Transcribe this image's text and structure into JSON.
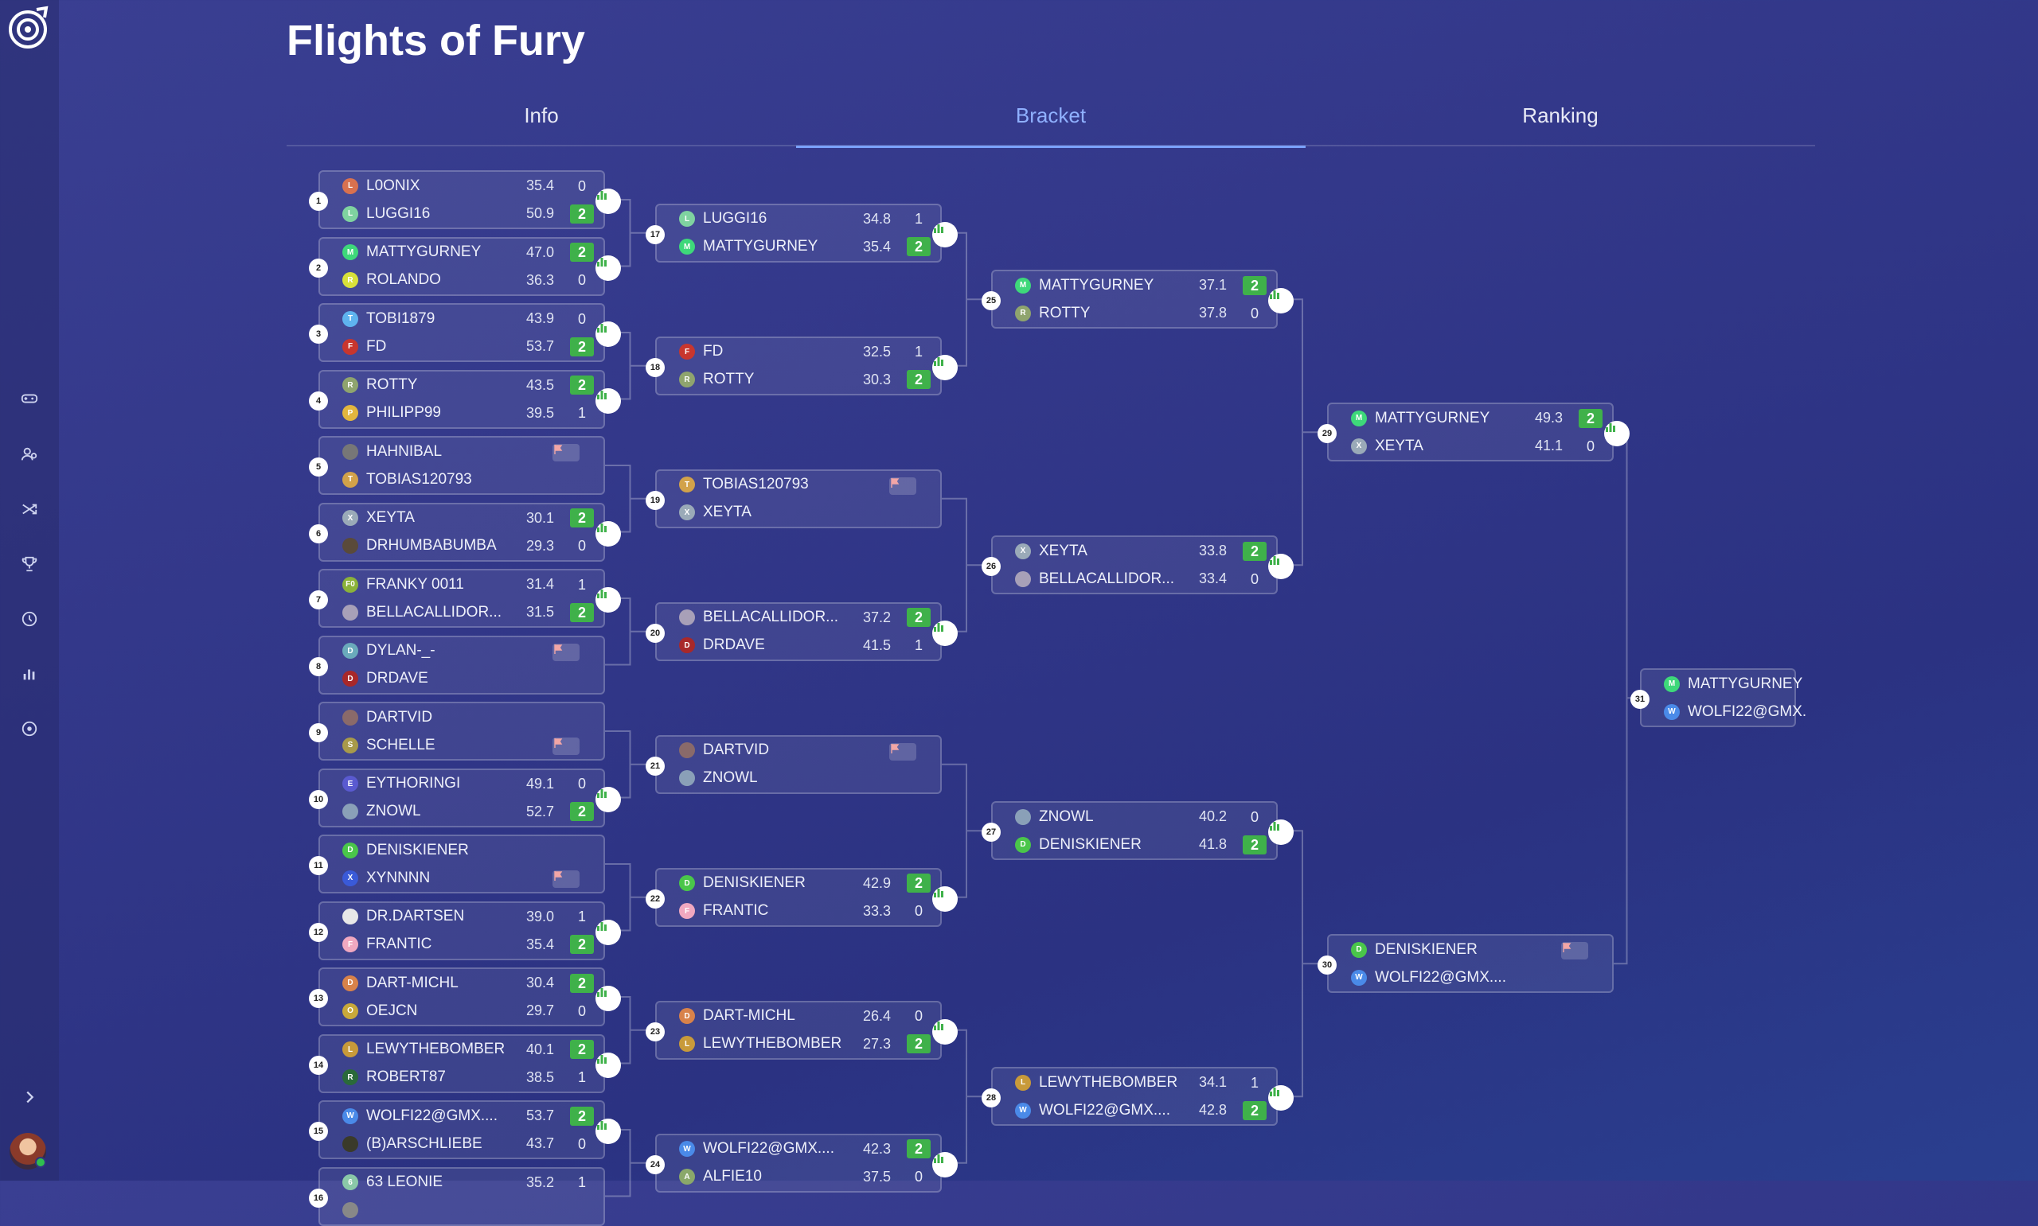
{
  "app": {
    "title": "Flights of Fury"
  },
  "tabs": [
    {
      "label": "Info"
    },
    {
      "label": "Bracket",
      "active": true
    },
    {
      "label": "Ranking"
    }
  ],
  "sidebar": {
    "items": [
      "gamepad-icon",
      "players-icon",
      "shuffle-icon",
      "trophy-icon",
      "history-icon",
      "stats-icon",
      "target-icon"
    ],
    "expand": "chevron-right-icon"
  },
  "colors": {
    "win": "#3fb14a",
    "accent": "#7aa2ff",
    "stat_icon": "#3fb14a"
  },
  "rounds": [
    [
      {
        "num": "1",
        "stat": true,
        "players": [
          {
            "name": "L0ONIX",
            "avg": "35.4",
            "score": "0",
            "init": "L",
            "color": "#d9714f"
          },
          {
            "name": "LUGGI16",
            "avg": "50.9",
            "score": "2",
            "win": true,
            "init": "L",
            "color": "#7fd3a0"
          }
        ]
      },
      {
        "num": "2",
        "stat": true,
        "players": [
          {
            "name": "MATTYGURNEY",
            "avg": "47.0",
            "score": "2",
            "win": true,
            "init": "M",
            "color": "#3ed87a"
          },
          {
            "name": "ROLANDO",
            "avg": "36.3",
            "score": "0",
            "init": "R",
            "color": "#d8e03a"
          }
        ]
      },
      {
        "num": "3",
        "stat": true,
        "players": [
          {
            "name": "TOBI1879",
            "avg": "43.9",
            "score": "0",
            "init": "T",
            "color": "#5fb3ef"
          },
          {
            "name": "FD",
            "avg": "53.7",
            "score": "2",
            "win": true,
            "init": "F",
            "color": "#c8362e"
          }
        ]
      },
      {
        "num": "4",
        "stat": true,
        "players": [
          {
            "name": "ROTTY",
            "avg": "43.5",
            "score": "2",
            "win": true,
            "init": "R",
            "color": "#8fa46e"
          },
          {
            "name": "PHILIPP99",
            "avg": "39.5",
            "score": "1",
            "init": "P",
            "color": "#e3b63e"
          }
        ]
      },
      {
        "num": "5",
        "flag": true,
        "players": [
          {
            "name": "HAHNIBAL",
            "init": "",
            "color": "#777777"
          },
          {
            "name": "TOBIAS120793",
            "init": "T",
            "color": "#d2a24a"
          }
        ]
      },
      {
        "num": "6",
        "stat": true,
        "players": [
          {
            "name": "XEYTA",
            "avg": "30.1",
            "score": "2",
            "win": true,
            "init": "X",
            "color": "#9aaab8"
          },
          {
            "name": "DRHUMBABUMBA",
            "avg": "29.3",
            "score": "0",
            "init": "",
            "color": "#5a4a3a"
          }
        ]
      },
      {
        "num": "7",
        "stat": true,
        "players": [
          {
            "name": "FRANKY 0011",
            "avg": "31.4",
            "score": "1",
            "init": "F0",
            "color": "#8bb23a"
          },
          {
            "name": "BELLACALLIDOR...",
            "avg": "31.5",
            "score": "2",
            "win": true,
            "init": "",
            "color": "#a8a0b8"
          }
        ]
      },
      {
        "num": "8",
        "flag": true,
        "players": [
          {
            "name": "DYLAN-_-",
            "init": "D",
            "color": "#6aaabb"
          },
          {
            "name": "DRDAVE",
            "init": "D",
            "color": "#a8282a"
          }
        ]
      },
      {
        "num": "9",
        "flag": true,
        "flagRow": 1,
        "players": [
          {
            "name": "DARTVID",
            "init": "",
            "color": "#8a6a6a"
          },
          {
            "name": "SCHELLE",
            "init": "S",
            "color": "#a89a4a"
          }
        ]
      },
      {
        "num": "10",
        "stat": true,
        "players": [
          {
            "name": "EYTHORINGI",
            "avg": "49.1",
            "score": "0",
            "init": "E",
            "color": "#5a5ad0"
          },
          {
            "name": "ZNOWL",
            "avg": "52.7",
            "score": "2",
            "win": true,
            "init": "",
            "color": "#8aa0b8"
          }
        ]
      },
      {
        "num": "11",
        "flag": true,
        "flagRow": 1,
        "players": [
          {
            "name": "DENISKIENER",
            "init": "D",
            "color": "#4ac64a"
          },
          {
            "name": "XYNNNN",
            "init": "X",
            "color": "#3a5ad8"
          }
        ]
      },
      {
        "num": "12",
        "stat": true,
        "players": [
          {
            "name": "DR.DARTSEN",
            "avg": "39.0",
            "score": "1",
            "init": "",
            "color": "#e8e8e8"
          },
          {
            "name": "FRANTIC",
            "avg": "35.4",
            "score": "2",
            "win": true,
            "init": "F",
            "color": "#f0a8c0"
          }
        ]
      },
      {
        "num": "13",
        "stat": true,
        "players": [
          {
            "name": "DART-MICHL",
            "avg": "30.4",
            "score": "2",
            "win": true,
            "init": "D",
            "color": "#d8824a"
          },
          {
            "name": "OEJCN",
            "avg": "29.7",
            "score": "0",
            "init": "O",
            "color": "#c8a83a"
          }
        ]
      },
      {
        "num": "14",
        "stat": true,
        "players": [
          {
            "name": "LEWYTHEBOMBER",
            "avg": "40.1",
            "score": "2",
            "win": true,
            "init": "L",
            "color": "#c89a3a"
          },
          {
            "name": "ROBERT87",
            "avg": "38.5",
            "score": "1",
            "init": "R",
            "color": "#2a6a3a"
          }
        ]
      },
      {
        "num": "15",
        "stat": true,
        "players": [
          {
            "name": "WOLFI22@GMX....",
            "avg": "53.7",
            "score": "2",
            "win": true,
            "init": "W",
            "color": "#4a8ae8"
          },
          {
            "name": "(B)ARSCHLIEBE",
            "avg": "43.7",
            "score": "0",
            "init": "",
            "color": "#3a3a2a"
          }
        ]
      },
      {
        "num": "16",
        "stat": false,
        "players": [
          {
            "name": "63 LEONIE",
            "avg": "35.2",
            "score": "1",
            "init": "6",
            "color": "#8ac8a8"
          },
          {
            "name": "",
            "avg": "",
            "score": "",
            "init": "",
            "color": "#888888"
          }
        ]
      }
    ],
    [
      {
        "num": "17",
        "stat": true,
        "players": [
          {
            "name": "LUGGI16",
            "avg": "34.8",
            "score": "1",
            "init": "L",
            "color": "#7fd3a0"
          },
          {
            "name": "MATTYGURNEY",
            "avg": "35.4",
            "score": "2",
            "win": true,
            "init": "M",
            "color": "#3ed87a"
          }
        ]
      },
      {
        "num": "18",
        "stat": true,
        "players": [
          {
            "name": "FD",
            "avg": "32.5",
            "score": "1",
            "init": "F",
            "color": "#c8362e"
          },
          {
            "name": "ROTTY",
            "avg": "30.3",
            "score": "2",
            "win": true,
            "init": "R",
            "color": "#8fa46e"
          }
        ]
      },
      {
        "num": "19",
        "flag": true,
        "players": [
          {
            "name": "TOBIAS120793",
            "init": "T",
            "color": "#d2a24a"
          },
          {
            "name": "XEYTA",
            "init": "X",
            "color": "#9aaab8"
          }
        ]
      },
      {
        "num": "20",
        "stat": true,
        "players": [
          {
            "name": "BELLACALLIDOR...",
            "avg": "37.2",
            "score": "2",
            "win": true,
            "init": "",
            "color": "#a8a0b8"
          },
          {
            "name": "DRDAVE",
            "avg": "41.5",
            "score": "1",
            "init": "D",
            "color": "#a8282a"
          }
        ]
      },
      {
        "num": "21",
        "flag": true,
        "players": [
          {
            "name": "DARTVID",
            "init": "",
            "color": "#8a6a6a"
          },
          {
            "name": "ZNOWL",
            "init": "",
            "color": "#8aa0b8"
          }
        ]
      },
      {
        "num": "22",
        "stat": true,
        "players": [
          {
            "name": "DENISKIENER",
            "avg": "42.9",
            "score": "2",
            "win": true,
            "init": "D",
            "color": "#4ac64a"
          },
          {
            "name": "FRANTIC",
            "avg": "33.3",
            "score": "0",
            "init": "F",
            "color": "#f0a8c0"
          }
        ]
      },
      {
        "num": "23",
        "stat": true,
        "players": [
          {
            "name": "DART-MICHL",
            "avg": "26.4",
            "score": "0",
            "init": "D",
            "color": "#d8824a"
          },
          {
            "name": "LEWYTHEBOMBER",
            "avg": "27.3",
            "score": "2",
            "win": true,
            "init": "L",
            "color": "#c89a3a"
          }
        ]
      },
      {
        "num": "24",
        "stat": true,
        "players": [
          {
            "name": "WOLFI22@GMX....",
            "avg": "42.3",
            "score": "2",
            "win": true,
            "init": "W",
            "color": "#4a8ae8"
          },
          {
            "name": "ALFIE10",
            "avg": "37.5",
            "score": "0",
            "init": "A",
            "color": "#8aa86a"
          }
        ]
      }
    ],
    [
      {
        "num": "25",
        "stat": true,
        "players": [
          {
            "name": "MATTYGURNEY",
            "avg": "37.1",
            "score": "2",
            "win": true,
            "init": "M",
            "color": "#3ed87a"
          },
          {
            "name": "ROTTY",
            "avg": "37.8",
            "score": "0",
            "init": "R",
            "color": "#8fa46e"
          }
        ]
      },
      {
        "num": "26",
        "stat": true,
        "players": [
          {
            "name": "XEYTA",
            "avg": "33.8",
            "score": "2",
            "win": true,
            "init": "X",
            "color": "#9aaab8"
          },
          {
            "name": "BELLACALLIDOR...",
            "avg": "33.4",
            "score": "0",
            "init": "",
            "color": "#a8a0b8"
          }
        ]
      },
      {
        "num": "27",
        "stat": true,
        "players": [
          {
            "name": "ZNOWL",
            "avg": "40.2",
            "score": "0",
            "init": "",
            "color": "#8aa0b8"
          },
          {
            "name": "DENISKIENER",
            "avg": "41.8",
            "score": "2",
            "win": true,
            "init": "D",
            "color": "#4ac64a"
          }
        ]
      },
      {
        "num": "28",
        "stat": true,
        "players": [
          {
            "name": "LEWYTHEBOMBER",
            "avg": "34.1",
            "score": "1",
            "init": "L",
            "color": "#c89a3a"
          },
          {
            "name": "WOLFI22@GMX....",
            "avg": "42.8",
            "score": "2",
            "win": true,
            "init": "W",
            "color": "#4a8ae8"
          }
        ]
      }
    ],
    [
      {
        "num": "29",
        "stat": true,
        "players": [
          {
            "name": "MATTYGURNEY",
            "avg": "49.3",
            "score": "2",
            "win": true,
            "init": "M",
            "color": "#3ed87a"
          },
          {
            "name": "XEYTA",
            "avg": "41.1",
            "score": "0",
            "init": "X",
            "color": "#9aaab8"
          }
        ]
      },
      {
        "num": "30",
        "flag": true,
        "players": [
          {
            "name": "DENISKIENER",
            "init": "D",
            "color": "#4ac64a"
          },
          {
            "name": "WOLFI22@GMX....",
            "init": "W",
            "color": "#4a8ae8"
          }
        ]
      }
    ],
    [
      {
        "num": "31",
        "cut": true,
        "players": [
          {
            "name": "MATTYGURNEY",
            "init": "M",
            "color": "#3ed87a"
          },
          {
            "name": "WOLFI22@GMX.",
            "init": "W",
            "color": "#4a8ae8"
          }
        ]
      }
    ]
  ]
}
